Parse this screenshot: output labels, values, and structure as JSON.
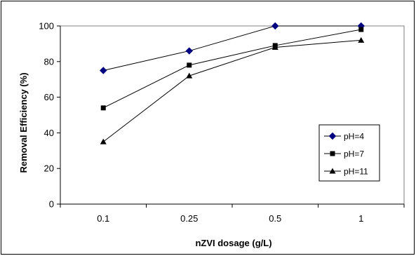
{
  "chart_data": {
    "type": "line",
    "title": "",
    "xlabel": "nZVI dosage (g/L)",
    "ylabel": "Removal Efficiency (%)",
    "categories": [
      "0.1",
      "0.25",
      "0.5",
      "1"
    ],
    "ylim": [
      0,
      100
    ],
    "yticks": [
      0,
      20,
      40,
      60,
      80,
      100
    ],
    "grid": false,
    "legend_position": "right",
    "series": [
      {
        "name": "pH=4",
        "marker": "diamond",
        "color": "#000080",
        "values": [
          75,
          86,
          100,
          100
        ]
      },
      {
        "name": "pH=7",
        "marker": "square",
        "color": "#000000",
        "values": [
          54,
          78,
          89,
          98
        ]
      },
      {
        "name": "pH=11",
        "marker": "triangle",
        "color": "#000000",
        "values": [
          35,
          72,
          88,
          92
        ]
      }
    ]
  }
}
